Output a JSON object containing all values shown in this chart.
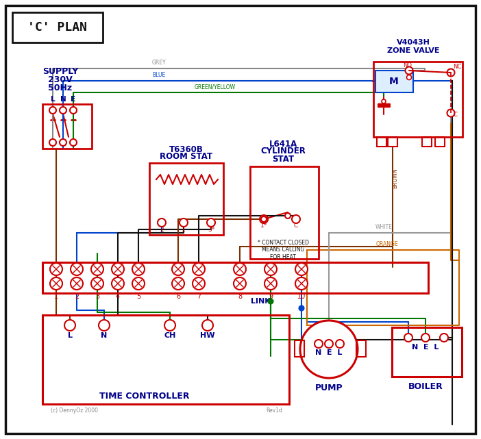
{
  "red": "#cc0000",
  "blue": "#0044cc",
  "green": "#007700",
  "grey": "#888888",
  "brown": "#7B3000",
  "black": "#111111",
  "orange": "#cc6600",
  "dark_blue": "#00008B",
  "white_wire": "#999999",
  "title": "'C' PLAN",
  "supply_line1": "SUPPLY",
  "supply_line2": "230V",
  "supply_line3": "50Hz",
  "lne": [
    "L",
    "N",
    "E"
  ],
  "room_stat_line1": "T6360B",
  "room_stat_line2": "ROOM STAT",
  "cyl_stat_line1": "L641A",
  "cyl_stat_line2": "CYLINDER",
  "cyl_stat_line3": "STAT",
  "zone_valve_line1": "V4043H",
  "zone_valve_line2": "ZONE VALVE",
  "tc_title": "TIME CONTROLLER",
  "pump_title": "PUMP",
  "boiler_title": "BOILER",
  "link_label": "LINK",
  "copyright": "(c) DennyOz 2000",
  "rev": "Rev1d",
  "contact_note": "* CONTACT CLOSED\nMEANS CALLING\nFOR HEAT",
  "terminal_nums": [
    "1",
    "2",
    "3",
    "4",
    "5",
    "6",
    "7",
    "8",
    "9",
    "10"
  ],
  "tc_terms": [
    "L",
    "N",
    "CH",
    "HW"
  ],
  "grey_label": "GREY",
  "blue_label": "BLUE",
  "green_yellow_label": "GREEN/YELLOW",
  "brown_label": "BROWN",
  "white_label": "WHITE",
  "orange_label": "ORANGE"
}
